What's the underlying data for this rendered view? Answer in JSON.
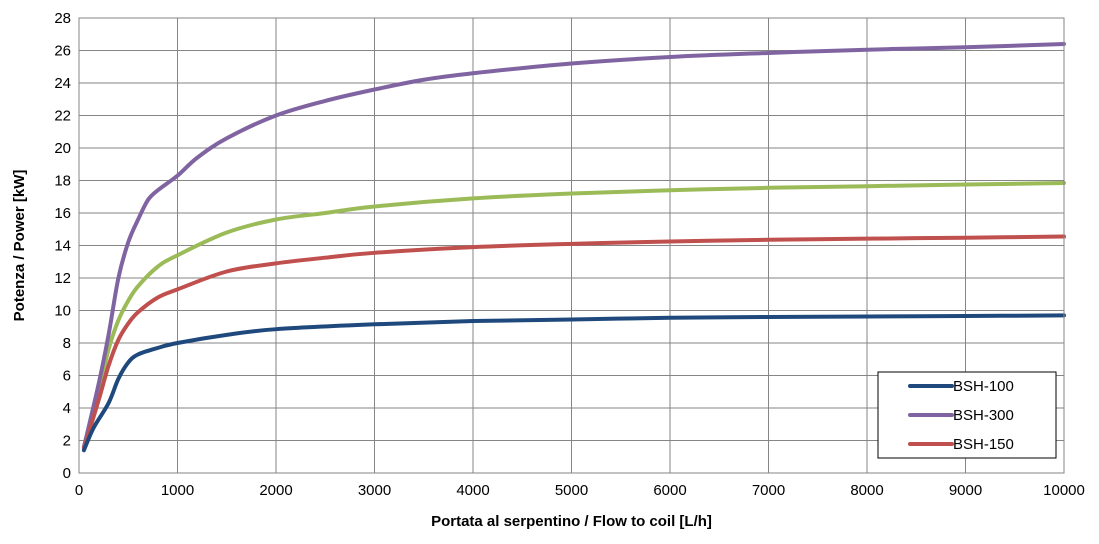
{
  "chart_data": {
    "type": "line",
    "title": "",
    "xlabel": "Portata al serpentino / Flow to coil [L/h]",
    "ylabel": "Potenza / Power [kW]",
    "xlim": [
      0,
      10000
    ],
    "ylim": [
      0,
      28
    ],
    "x_ticks": [
      0,
      1000,
      2000,
      3000,
      4000,
      5000,
      6000,
      7000,
      8000,
      9000,
      10000
    ],
    "y_ticks": [
      0,
      2,
      4,
      6,
      8,
      10,
      12,
      14,
      16,
      18,
      20,
      22,
      24,
      26,
      28
    ],
    "grid": true,
    "legend_position": "bottom-right",
    "series": [
      {
        "name": "BSH-100",
        "color": "#1f497d",
        "points": [
          [
            50,
            1.4
          ],
          [
            150,
            2.8
          ],
          [
            300,
            4.3
          ],
          [
            400,
            5.8
          ],
          [
            500,
            6.8
          ],
          [
            600,
            7.3
          ],
          [
            800,
            7.7
          ],
          [
            1000,
            8.0
          ],
          [
            1500,
            8.5
          ],
          [
            2000,
            8.85
          ],
          [
            3000,
            9.15
          ],
          [
            4000,
            9.35
          ],
          [
            5000,
            9.45
          ],
          [
            6000,
            9.55
          ],
          [
            7000,
            9.6
          ],
          [
            8000,
            9.63
          ],
          [
            9000,
            9.66
          ],
          [
            10000,
            9.7
          ]
        ]
      },
      {
        "name": "BSH-300",
        "color": "#8064a2",
        "points": [
          [
            50,
            1.6
          ],
          [
            200,
            5.5
          ],
          [
            300,
            8.5
          ],
          [
            400,
            12.0
          ],
          [
            500,
            14.2
          ],
          [
            600,
            15.6
          ],
          [
            700,
            16.8
          ],
          [
            800,
            17.4
          ],
          [
            1000,
            18.3
          ],
          [
            1200,
            19.4
          ],
          [
            1500,
            20.6
          ],
          [
            2000,
            22.0
          ],
          [
            2500,
            22.9
          ],
          [
            3000,
            23.6
          ],
          [
            3500,
            24.2
          ],
          [
            4000,
            24.6
          ],
          [
            5000,
            25.2
          ],
          [
            6000,
            25.6
          ],
          [
            7000,
            25.85
          ],
          [
            8000,
            26.05
          ],
          [
            9000,
            26.2
          ],
          [
            10000,
            26.4
          ]
        ]
      },
      {
        "name": "BSH-150",
        "color": "#c0504d",
        "points": [
          [
            50,
            1.5
          ],
          [
            200,
            4.5
          ],
          [
            300,
            6.6
          ],
          [
            400,
            8.2
          ],
          [
            500,
            9.2
          ],
          [
            600,
            9.9
          ],
          [
            800,
            10.8
          ],
          [
            1000,
            11.3
          ],
          [
            1500,
            12.4
          ],
          [
            2000,
            12.9
          ],
          [
            2500,
            13.25
          ],
          [
            3000,
            13.55
          ],
          [
            4000,
            13.9
          ],
          [
            5000,
            14.1
          ],
          [
            6000,
            14.25
          ],
          [
            7000,
            14.35
          ],
          [
            8000,
            14.42
          ],
          [
            9000,
            14.48
          ],
          [
            10000,
            14.55
          ]
        ]
      },
      {
        "color": "#9bbb59",
        "points": [
          [
            50,
            1.6
          ],
          [
            200,
            5.0
          ],
          [
            300,
            7.6
          ],
          [
            400,
            9.4
          ],
          [
            500,
            10.6
          ],
          [
            600,
            11.5
          ],
          [
            800,
            12.7
          ],
          [
            1000,
            13.4
          ],
          [
            1500,
            14.8
          ],
          [
            2000,
            15.6
          ],
          [
            2500,
            16.0
          ],
          [
            3000,
            16.4
          ],
          [
            4000,
            16.9
          ],
          [
            5000,
            17.2
          ],
          [
            6000,
            17.4
          ],
          [
            7000,
            17.55
          ],
          [
            8000,
            17.65
          ],
          [
            9000,
            17.75
          ],
          [
            10000,
            17.85
          ]
        ]
      }
    ],
    "legend": [
      "BSH-100",
      "BSH-300",
      "BSH-150"
    ]
  }
}
